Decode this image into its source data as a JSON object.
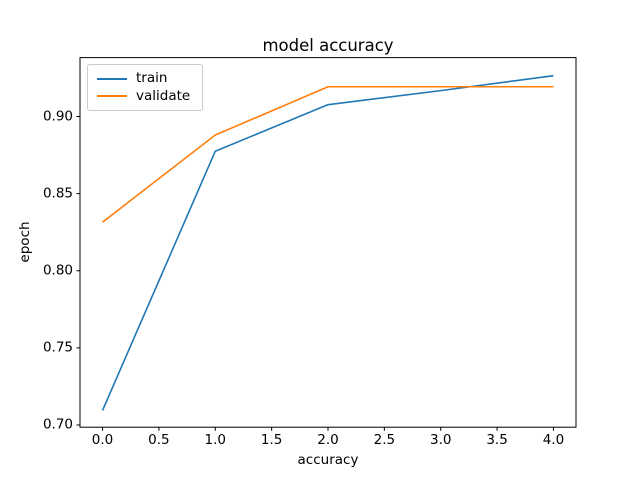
{
  "chart_data": {
    "type": "line",
    "title": "model accuracy",
    "xlabel": "accuracy",
    "ylabel": "epoch",
    "x": [
      0,
      1,
      2,
      3,
      4
    ],
    "series": [
      {
        "name": "train",
        "color": "#1f77b4",
        "values": [
          0.7095,
          0.8775,
          0.9077,
          0.9168,
          0.9265
        ]
      },
      {
        "name": "validate",
        "color": "#ff7f0e",
        "values": [
          0.8315,
          0.888,
          0.9193,
          0.9193,
          0.9193
        ]
      }
    ],
    "xlim": [
      -0.2,
      4.2
    ],
    "ylim": [
      0.6986,
      0.9382
    ],
    "xticks": [
      {
        "v": 0.0,
        "label": "0.0"
      },
      {
        "v": 0.5,
        "label": "0.5"
      },
      {
        "v": 1.0,
        "label": "1.0"
      },
      {
        "v": 1.5,
        "label": "1.5"
      },
      {
        "v": 2.0,
        "label": "2.0"
      },
      {
        "v": 2.5,
        "label": "2.5"
      },
      {
        "v": 3.0,
        "label": "3.0"
      },
      {
        "v": 3.5,
        "label": "3.5"
      },
      {
        "v": 4.0,
        "label": "4.0"
      }
    ],
    "yticks": [
      {
        "v": 0.7,
        "label": "0.70"
      },
      {
        "v": 0.75,
        "label": "0.75"
      },
      {
        "v": 0.8,
        "label": "0.80"
      },
      {
        "v": 0.85,
        "label": "0.85"
      },
      {
        "v": 0.9,
        "label": "0.90"
      }
    ],
    "legend": {
      "position": "upper left",
      "entries": [
        "train",
        "validate"
      ]
    },
    "grid": false,
    "axes_color": "#000000",
    "background_color": "#ffffff"
  }
}
